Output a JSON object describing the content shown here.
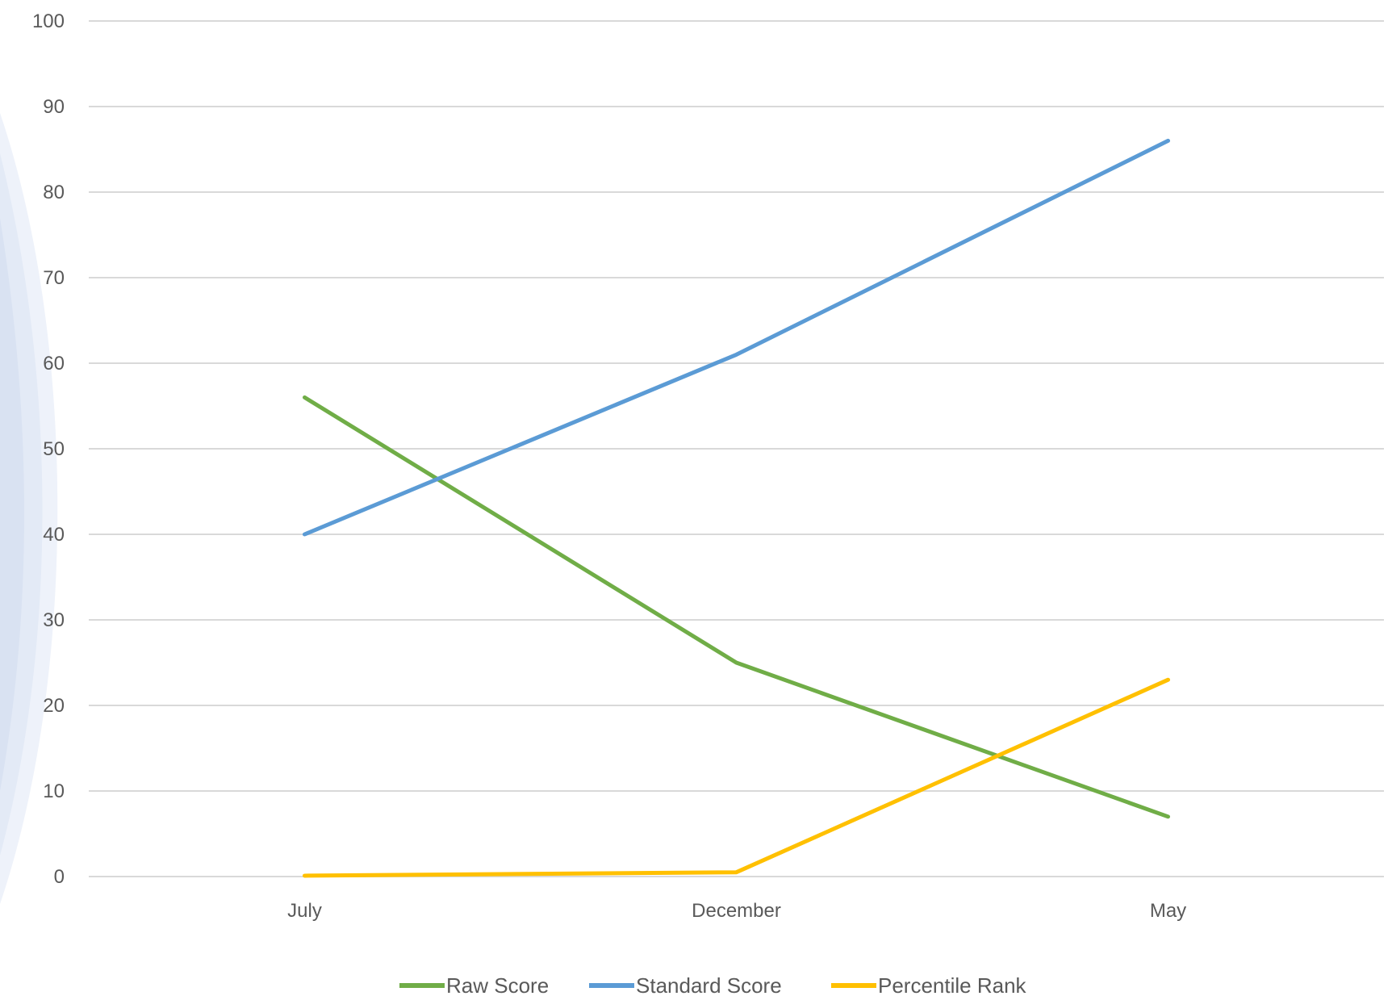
{
  "chart_data": {
    "type": "line",
    "categories": [
      "July",
      "December",
      "May"
    ],
    "series": [
      {
        "name": "Raw Score",
        "values": [
          56,
          25,
          7
        ],
        "color": "#70ad47"
      },
      {
        "name": "Standard Score",
        "values": [
          40,
          61,
          86
        ],
        "color": "#5b9bd5"
      },
      {
        "name": "Percentile Rank",
        "values": [
          0.1,
          0.5,
          23
        ],
        "color": "#ffc000"
      }
    ],
    "ylim": [
      0,
      100
    ],
    "yticks": [
      0,
      10,
      20,
      30,
      40,
      50,
      60,
      70,
      80,
      90,
      100
    ],
    "grid": true,
    "legend_position": "bottom",
    "colors": {
      "grid": "#d9d9d9",
      "tick_text": "#595959",
      "background_decoration": "#dae3f3"
    }
  }
}
